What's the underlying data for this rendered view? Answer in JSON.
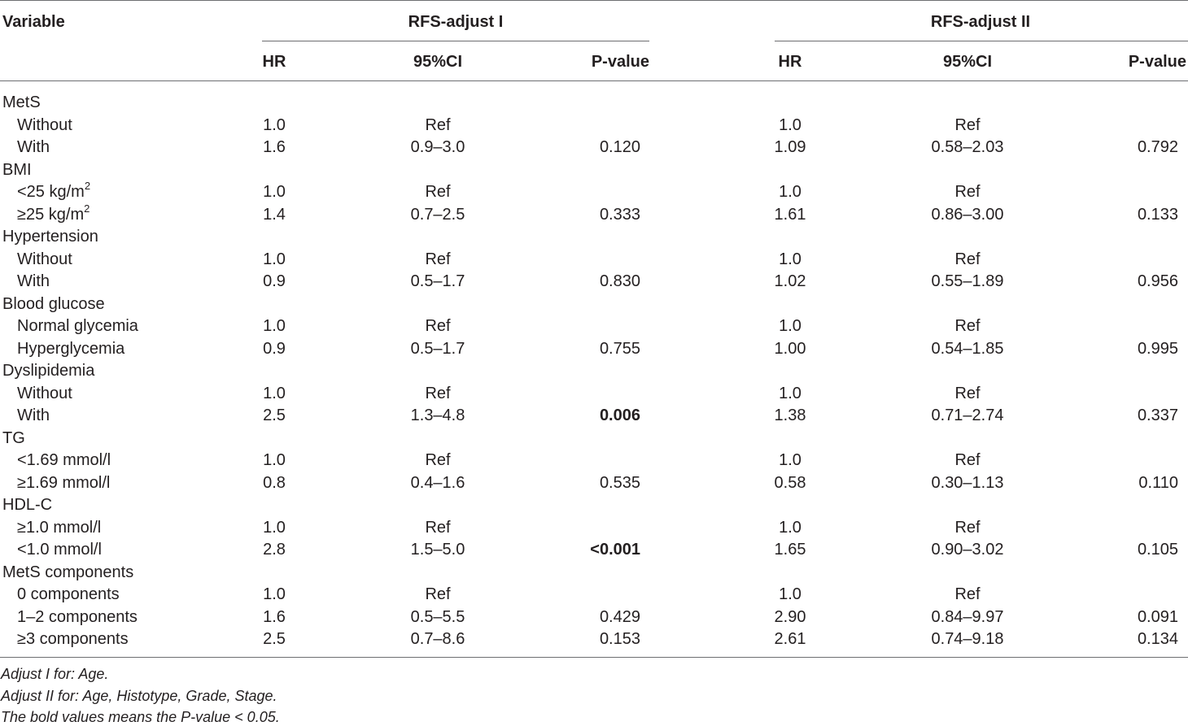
{
  "header": {
    "variable": "Variable",
    "group1": "RFS-adjust I",
    "group2": "RFS-adjust II",
    "hr": "HR",
    "ci": "95%CI",
    "p": "P-value"
  },
  "rows": [
    {
      "label": "MetS",
      "indent": false
    },
    {
      "label": "Without",
      "indent": true,
      "hr1": "1.0",
      "ci1": "Ref",
      "p1": "",
      "hr2": "1.0",
      "ci2": "Ref",
      "p2": ""
    },
    {
      "label": "With",
      "indent": true,
      "hr1": "1.6",
      "ci1": "0.9–3.0",
      "p1": "0.120",
      "hr2": "1.09",
      "ci2": "0.58–2.03",
      "p2": "0.792"
    },
    {
      "label": "BMI",
      "indent": false
    },
    {
      "label": "<25 kg/m",
      "sup": "2",
      "indent": true,
      "hr1": "1.0",
      "ci1": "Ref",
      "p1": "",
      "hr2": "1.0",
      "ci2": "Ref",
      "p2": ""
    },
    {
      "label": "≥25 kg/m",
      "sup": "2",
      "indent": true,
      "hr1": "1.4",
      "ci1": "0.7–2.5",
      "p1": "0.333",
      "hr2": "1.61",
      "ci2": "0.86–3.00",
      "p2": "0.133"
    },
    {
      "label": "Hypertension",
      "indent": false
    },
    {
      "label": "Without",
      "indent": true,
      "hr1": "1.0",
      "ci1": "Ref",
      "p1": "",
      "hr2": "1.0",
      "ci2": "Ref",
      "p2": ""
    },
    {
      "label": "With",
      "indent": true,
      "hr1": "0.9",
      "ci1": "0.5–1.7",
      "p1": "0.830",
      "hr2": "1.02",
      "ci2": "0.55–1.89",
      "p2": "0.956"
    },
    {
      "label": "Blood glucose",
      "indent": false
    },
    {
      "label": "Normal glycemia",
      "indent": true,
      "hr1": "1.0",
      "ci1": "Ref",
      "p1": "",
      "hr2": "1.0",
      "ci2": "Ref",
      "p2": ""
    },
    {
      "label": "Hyperglycemia",
      "indent": true,
      "hr1": "0.9",
      "ci1": "0.5–1.7",
      "p1": "0.755",
      "hr2": "1.00",
      "ci2": "0.54–1.85",
      "p2": "0.995"
    },
    {
      "label": "Dyslipidemia",
      "indent": false
    },
    {
      "label": "Without",
      "indent": true,
      "hr1": "1.0",
      "ci1": "Ref",
      "p1": "",
      "hr2": "1.0",
      "ci2": "Ref",
      "p2": ""
    },
    {
      "label": "With",
      "indent": true,
      "hr1": "2.5",
      "ci1": "1.3–4.8",
      "p1": "0.006",
      "p1_bold": true,
      "hr2": "1.38",
      "ci2": "0.71–2.74",
      "p2": "0.337"
    },
    {
      "label": "TG",
      "indent": false
    },
    {
      "label": "<1.69 mmol/l",
      "indent": true,
      "hr1": "1.0",
      "ci1": "Ref",
      "p1": "",
      "hr2": "1.0",
      "ci2": "Ref",
      "p2": ""
    },
    {
      "label": "≥1.69 mmol/l",
      "indent": true,
      "hr1": "0.8",
      "ci1": "0.4–1.6",
      "p1": "0.535",
      "hr2": "0.58",
      "ci2": "0.30–1.13",
      "p2": "0.110"
    },
    {
      "label": "HDL-C",
      "indent": false
    },
    {
      "label": "≥1.0 mmol/l",
      "indent": true,
      "hr1": "1.0",
      "ci1": "Ref",
      "p1": "",
      "hr2": "1.0",
      "ci2": "Ref",
      "p2": ""
    },
    {
      "label": "<1.0 mmol/l",
      "indent": true,
      "hr1": "2.8",
      "ci1": "1.5–5.0",
      "p1": "<0.001",
      "p1_bold": true,
      "hr2": "1.65",
      "ci2": "0.90–3.02",
      "p2": "0.105"
    },
    {
      "label": "MetS components",
      "indent": false
    },
    {
      "label": "0 components",
      "indent": true,
      "hr1": "1.0",
      "ci1": "Ref",
      "p1": "",
      "hr2": "1.0",
      "ci2": "Ref",
      "p2": ""
    },
    {
      "label": "1–2 components",
      "indent": true,
      "hr1": "1.6",
      "ci1": "0.5–5.5",
      "p1": "0.429",
      "hr2": "2.90",
      "ci2": "0.84–9.97",
      "p2": "0.091"
    },
    {
      "label": "≥3 components",
      "indent": true,
      "hr1": "2.5",
      "ci1": "0.7–8.6",
      "p1": "0.153",
      "hr2": "2.61",
      "ci2": "0.74–9.18",
      "p2": "0.134"
    }
  ],
  "footnotes": [
    "Adjust I for: Age.",
    "Adjust II for: Age, Histotype, Grade, Stage.",
    "The bold values means the P-value < 0.05."
  ]
}
